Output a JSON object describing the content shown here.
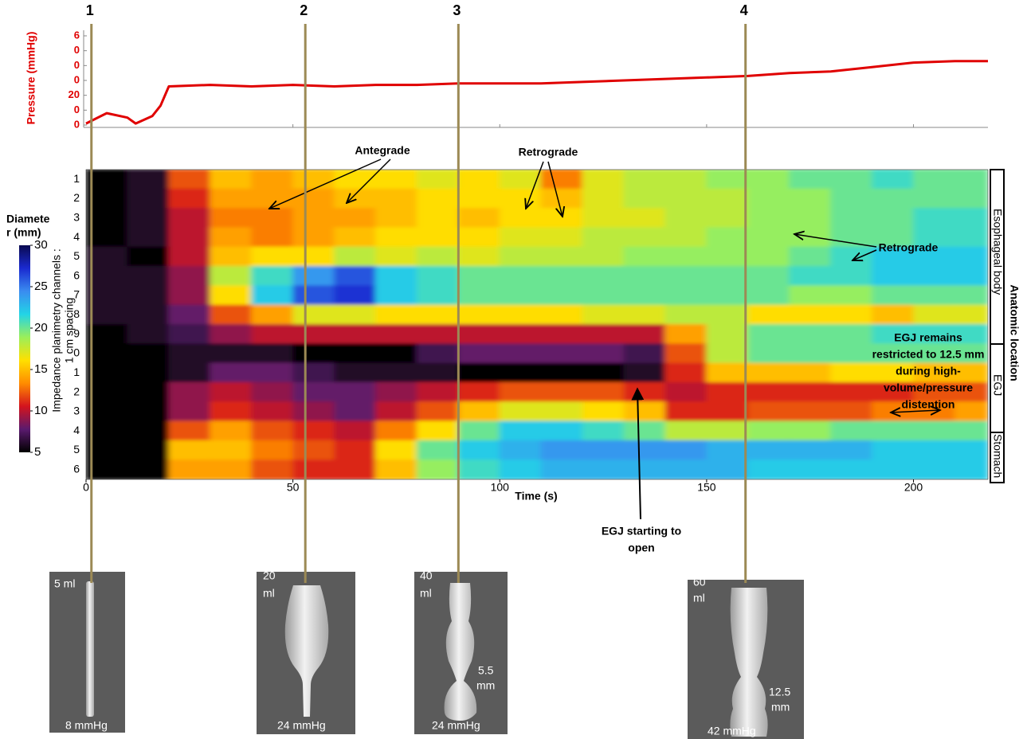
{
  "figure": {
    "markers": [
      {
        "label": "1",
        "time": 1.3
      },
      {
        "label": "2",
        "time": 53
      },
      {
        "label": "3",
        "time": 90
      },
      {
        "label": "4",
        "time": 159.4
      }
    ],
    "annotations": {
      "antegrade": "Antegrade",
      "retrograde_top": "Retrograde",
      "retrograde_right": "Retrograde",
      "egj_restricted": [
        "EGJ remains",
        "restricted to 12.5 mm",
        "during high-",
        "volume/pressure",
        "distention"
      ],
      "egj_open": [
        "EGJ starting to",
        "open"
      ]
    },
    "anatomy": {
      "title": "Anatomic location",
      "regions": [
        "Esophageal body",
        "EGJ",
        "Stomach"
      ]
    },
    "images": [
      {
        "volume": [
          "5 ml"
        ],
        "pressure": "8 mmHg"
      },
      {
        "volume": [
          "20",
          "ml"
        ],
        "pressure": "24 mmHg"
      },
      {
        "volume": [
          "40",
          "ml"
        ],
        "diameter": [
          "5.5",
          "mm"
        ],
        "pressure": "24 mmHg"
      },
      {
        "volume": [
          "60",
          "ml"
        ],
        "diameter": [
          "12.5",
          "mm"
        ],
        "pressure": "42 mmHg"
      }
    ]
  },
  "chart_data": [
    {
      "type": "line",
      "y_label": "Pressure (mmHg)",
      "color": "#e00000",
      "x": [
        0,
        5,
        10,
        12,
        16,
        18,
        20,
        30,
        40,
        50,
        60,
        70,
        80,
        90,
        100,
        110,
        120,
        130,
        140,
        150,
        160,
        170,
        180,
        190,
        200,
        210,
        218
      ],
      "values": [
        1,
        8,
        5,
        1,
        6,
        13,
        26,
        27,
        26,
        27,
        26,
        27,
        27,
        28,
        28,
        28,
        29,
        30,
        31,
        32,
        33,
        35,
        36,
        39,
        42,
        43,
        43
      ],
      "xlim": [
        0,
        218
      ],
      "ylim": [
        0,
        60
      ],
      "yticks": [
        0,
        {
          "value": 10,
          "label": "0"
        },
        20,
        {
          "value": 30,
          "label": "0"
        },
        {
          "value": 40,
          "label": "0"
        },
        {
          "value": 50,
          "label": "0"
        },
        {
          "value": 60,
          "label": "6"
        }
      ]
    },
    {
      "type": "heatmap",
      "x_label": "Time (s)",
      "y_label": [
        "Impedance planimetry channels :",
        "1 cm spacing"
      ],
      "x": [
        0,
        10,
        20,
        30,
        40,
        50,
        60,
        70,
        80,
        90,
        100,
        110,
        120,
        130,
        140,
        150,
        160,
        170,
        180,
        190,
        200,
        210
      ],
      "xlim": [
        0,
        218
      ],
      "xticks": [
        0,
        50,
        100,
        150,
        200
      ],
      "ylim": [
        0.5,
        16.5
      ],
      "yticks": [
        1,
        2,
        3,
        4,
        5,
        6,
        7,
        8,
        9,
        {
          "value": 10,
          "label": "0"
        },
        {
          "value": 11,
          "label": "1"
        },
        {
          "value": 12,
          "label": "2"
        },
        {
          "value": 13,
          "label": "3"
        },
        {
          "value": 14,
          "label": "4"
        },
        {
          "value": 15,
          "label": "5"
        },
        {
          "value": 16,
          "label": "6"
        }
      ],
      "values": [
        [
          5,
          6,
          12,
          15,
          14,
          15,
          16,
          16,
          17,
          16,
          17,
          13,
          17,
          18,
          18,
          19,
          19,
          20,
          20,
          21,
          20,
          20
        ],
        [
          5,
          6,
          11,
          14,
          14,
          14,
          15,
          15,
          16,
          16,
          16,
          15,
          17,
          18,
          18,
          18,
          19,
          19,
          20,
          20,
          20,
          20
        ],
        [
          5,
          6,
          10,
          13,
          13,
          14,
          14,
          15,
          16,
          15,
          16,
          16,
          17,
          17,
          18,
          18,
          19,
          19,
          20,
          20,
          21,
          21
        ],
        [
          5,
          6,
          10,
          14,
          13,
          14,
          15,
          16,
          16,
          16,
          17,
          17,
          18,
          18,
          18,
          19,
          19,
          19,
          20,
          20,
          21,
          21
        ],
        [
          6,
          5,
          10,
          15,
          16,
          16,
          18,
          17,
          18,
          17,
          18,
          18,
          18,
          19,
          19,
          19,
          19,
          20,
          21,
          22,
          22,
          22
        ],
        [
          6,
          6,
          9,
          18,
          21,
          24,
          26,
          22,
          21,
          20,
          20,
          20,
          20,
          20,
          20,
          20,
          20,
          21,
          21,
          22,
          22,
          22
        ],
        [
          6,
          6,
          9,
          16,
          22,
          26,
          27,
          22,
          21,
          20,
          20,
          20,
          20,
          20,
          20,
          20,
          20,
          19,
          19,
          20,
          20,
          20
        ],
        [
          6,
          6,
          8,
          12,
          14,
          17,
          17,
          16,
          16,
          16,
          16,
          16,
          17,
          17,
          18,
          18,
          16,
          16,
          16,
          15,
          17,
          17
        ],
        [
          5,
          6,
          7,
          9,
          10,
          10,
          10,
          10,
          10,
          10,
          10,
          10,
          10,
          10,
          14,
          18,
          20,
          20,
          20,
          21,
          21,
          21
        ],
        [
          5,
          5,
          6,
          6,
          6,
          5,
          5,
          5,
          7,
          8,
          8,
          8,
          8,
          7,
          12,
          18,
          20,
          20,
          20,
          20,
          20,
          20
        ],
        [
          5,
          5,
          6,
          8,
          8,
          7,
          6,
          6,
          6,
          5,
          5,
          5,
          5,
          6,
          11,
          15,
          15,
          15,
          16,
          16,
          15,
          15
        ],
        [
          5,
          5,
          9,
          10,
          9,
          8,
          8,
          9,
          10,
          11,
          12,
          12,
          12,
          11,
          10,
          11,
          11,
          11,
          11,
          11,
          12,
          12
        ],
        [
          5,
          5,
          9,
          11,
          10,
          9,
          8,
          10,
          12,
          15,
          17,
          17,
          16,
          15,
          11,
          11,
          12,
          12,
          12,
          13,
          13,
          14
        ],
        [
          5,
          5,
          12,
          14,
          12,
          11,
          10,
          13,
          16,
          20,
          22,
          22,
          21,
          20,
          18,
          18,
          19,
          19,
          20,
          20,
          20,
          20
        ],
        [
          5,
          5,
          15,
          15,
          13,
          12,
          11,
          16,
          20,
          22,
          23,
          24,
          24,
          24,
          24,
          23,
          23,
          23,
          23,
          22,
          22,
          22
        ],
        [
          5,
          5,
          14,
          14,
          12,
          11,
          11,
          15,
          19,
          21,
          22,
          23,
          23,
          23,
          23,
          23,
          22,
          22,
          22,
          22,
          22,
          22
        ]
      ],
      "colorbar": {
        "title": [
          "Diamete",
          "r (mm)"
        ],
        "zlim": [
          5,
          30
        ],
        "ticks": [
          5,
          10,
          15,
          20,
          25,
          30
        ],
        "colors": [
          "#000000",
          "#5a1a6e",
          "#d4141e",
          "#ff8c00",
          "#ffe000",
          "#9bef5a",
          "#22d4e6",
          "#3a8cf0",
          "#1a2ad0",
          "#0a0a50"
        ]
      }
    }
  ]
}
